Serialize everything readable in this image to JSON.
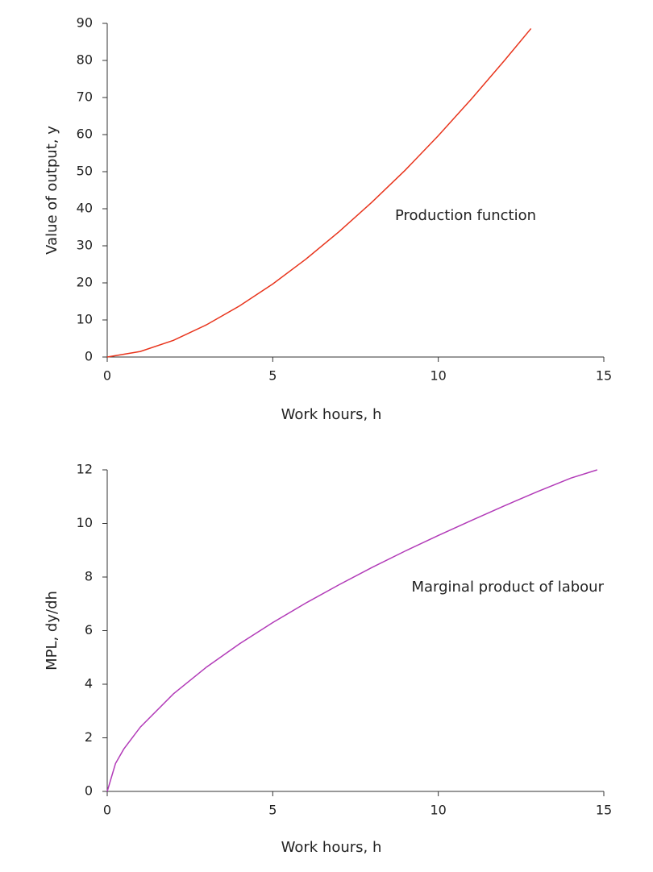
{
  "chart_data": [
    {
      "type": "line",
      "x_label": "Work hours, h",
      "y_label": "Value of output, y",
      "annotation": "Production function",
      "xlim": [
        0,
        15
      ],
      "xticks": [
        0,
        5,
        10,
        15
      ],
      "ylim": [
        0,
        90
      ],
      "yticks": [
        0,
        10,
        20,
        30,
        40,
        50,
        60,
        70,
        80,
        90
      ],
      "series": [
        {
          "name": "Production function",
          "color": "#e8341c",
          "x": [
            0,
            1,
            2,
            3,
            4,
            5,
            6,
            7,
            8,
            9,
            10,
            11,
            12,
            12.8
          ],
          "values": [
            0,
            1.5,
            4.5,
            8.7,
            13.8,
            19.7,
            26.4,
            33.8,
            41.8,
            50.4,
            59.7,
            69.6,
            80.0,
            88.6
          ]
        }
      ]
    },
    {
      "type": "line",
      "x_label": "Work hours, h",
      "y_label": "MPL, dy/dh",
      "annotation": "Marginal product of labour",
      "xlim": [
        0,
        15
      ],
      "xticks": [
        0,
        5,
        10,
        15
      ],
      "ylim": [
        0,
        12
      ],
      "yticks": [
        0,
        2,
        4,
        6,
        8,
        10,
        12
      ],
      "series": [
        {
          "name": "Marginal product of labour",
          "color": "#b23bb8",
          "x": [
            0,
            0.25,
            0.5,
            1,
            2,
            3,
            4,
            5,
            6,
            7,
            8,
            9,
            10,
            11,
            12,
            13,
            14,
            14.8
          ],
          "values": [
            0,
            1.04,
            1.58,
            2.4,
            3.64,
            4.64,
            5.51,
            6.3,
            7.03,
            7.71,
            8.36,
            8.97,
            9.55,
            10.11,
            10.66,
            11.19,
            11.69,
            12.0
          ]
        }
      ]
    }
  ]
}
